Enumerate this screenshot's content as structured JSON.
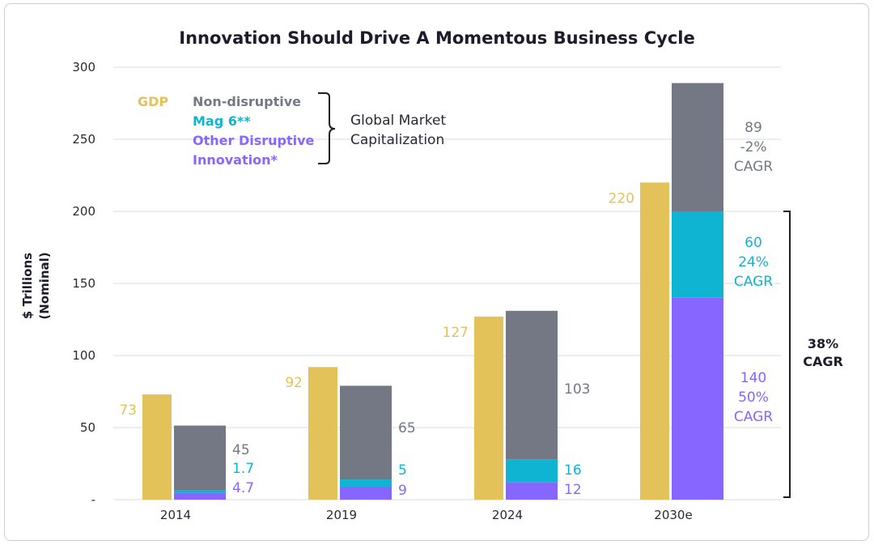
{
  "chart_data": {
    "type": "bar",
    "title": "Innovation Should Drive A Momentous Business Cycle",
    "ylabel_lines": [
      "$ Trillions",
      "(Nominal)"
    ],
    "ylim": [
      0,
      300
    ],
    "yticks": [
      {
        "value": 0,
        "label": "-"
      },
      {
        "value": 50,
        "label": "50"
      },
      {
        "value": 100,
        "label": "100"
      },
      {
        "value": 150,
        "label": "150"
      },
      {
        "value": 200,
        "label": "200"
      },
      {
        "value": 250,
        "label": "250"
      },
      {
        "value": 300,
        "label": "300"
      }
    ],
    "grid": true,
    "categories": [
      "2014",
      "2019",
      "2024",
      "2030e"
    ],
    "colors": {
      "gdp": "#e3c25a",
      "non_disruptive": "#737884",
      "mag6": "#0fb4d3",
      "other_disruptive": "#8766ff"
    },
    "gdp": {
      "name": "GDP",
      "values": [
        73,
        92,
        127,
        220
      ],
      "labels": [
        "73",
        "92",
        "127",
        "220"
      ]
    },
    "market_cap": [
      {
        "name": "Other Disruptive Innovation*",
        "key": "other_disruptive",
        "values": [
          4.7,
          9,
          12,
          140
        ],
        "labels": [
          "4.7",
          "9",
          "12",
          "140\n50%\nCAGR"
        ]
      },
      {
        "name": "Mag 6**",
        "key": "mag6",
        "values": [
          1.7,
          5,
          16,
          60
        ],
        "labels": [
          "1.7",
          "5",
          "16",
          "60\n24%\nCAGR"
        ]
      },
      {
        "name": "Non-disruptive",
        "key": "non_disruptive",
        "values": [
          45,
          65,
          103,
          89
        ],
        "labels": [
          "45",
          "65",
          "103",
          "89\n-2%\nCAGR"
        ]
      }
    ],
    "legend": {
      "gdp": "GDP",
      "items": [
        {
          "key": "non_disruptive",
          "lines": [
            "Non-disruptive"
          ]
        },
        {
          "key": "mag6",
          "lines": [
            "Mag 6**"
          ]
        },
        {
          "key": "other_disruptive",
          "lines": [
            "Other Disruptive",
            "Innovation*"
          ]
        }
      ],
      "group_label_lines": [
        "Global Market",
        "Capitalization"
      ]
    },
    "annotation": {
      "lines": [
        "38%",
        "CAGR"
      ]
    }
  }
}
